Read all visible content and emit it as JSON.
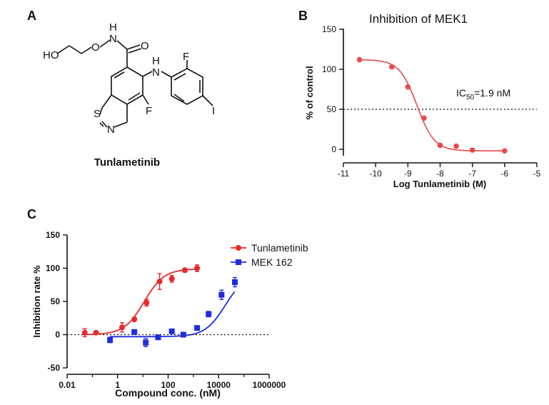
{
  "panels": {
    "a": "A",
    "b": "B",
    "c": "C"
  },
  "structure": {
    "name": "Tunlametinib",
    "atoms": {
      "ho": "HO",
      "o": "O",
      "n": "N",
      "h": "H",
      "carbonyl_o": "O",
      "nh_n": "N",
      "nh_h": "H",
      "f1": "F",
      "f2": "F",
      "i": "I",
      "s": "S",
      "ring_n": "N"
    }
  },
  "colors": {
    "tunlametinib": "#e8292b",
    "mek162": "#1f2be0",
    "panel_b_curve": "#e84a4a",
    "axis": "#111111"
  },
  "chart_data": [
    {
      "type": "scatter",
      "panel": "B",
      "title": "Inhibition of MEK1",
      "xlabel": "Log Tunlametinib (M)",
      "ylabel": "% of control",
      "xlim": [
        -11,
        -5
      ],
      "ylim": [
        -5,
        150
      ],
      "xticks": [
        -11,
        -10,
        -9,
        -8,
        -7,
        -6,
        -5
      ],
      "yticks": [
        0,
        50,
        100,
        150
      ],
      "reference_line_y": 50,
      "annotation": "IC50=1.9 nM",
      "annotation_main": "IC",
      "annotation_sub": "50",
      "annotation_rest": "=1.9 nM",
      "series": [
        {
          "x": [
            -10.5,
            -9.5,
            -9.0,
            -8.5,
            -8.0,
            -7.5,
            -7.0,
            -6.0
          ],
          "y": [
            112,
            103,
            78,
            39,
            5,
            4,
            -1,
            -2
          ]
        }
      ],
      "fit": {
        "top": 112,
        "bottom": -2,
        "log_ic50": -8.72,
        "hill": 1.6
      }
    },
    {
      "type": "line",
      "panel": "C",
      "xlabel": "Compound conc. (nM)",
      "ylabel": "Inhibition rate %",
      "xscale": "log",
      "xlim": [
        0.01,
        1000000
      ],
      "ylim": [
        -50,
        150
      ],
      "xticks": [
        0.01,
        1,
        100,
        10000,
        1000000
      ],
      "xtick_labels": [
        "0.01",
        "1",
        "100",
        "10000",
        "1000000"
      ],
      "yticks": [
        -50,
        0,
        50,
        100,
        150
      ],
      "reference_line_y": 0,
      "legend_position": "top-right",
      "series": [
        {
          "name": "Tunlametinib",
          "marker": "circle",
          "x": [
            0.05,
            0.14,
            1.5,
            4.6,
            14,
            46,
            140,
            460,
            1400
          ],
          "y": [
            3,
            3,
            11,
            23,
            48,
            80,
            84,
            97,
            100
          ],
          "err": [
            6,
            2,
            7,
            3,
            5,
            12,
            5,
            3,
            5
          ],
          "fit": {
            "top": 99,
            "bottom": 0,
            "log_ec50": 1.05,
            "hill": 1.1
          }
        },
        {
          "name": "MEK 162",
          "marker": "square",
          "x": [
            0.5,
            4.6,
            13,
            40,
            140,
            400,
            1400,
            4000,
            13000
          ],
          "y": [
            -8,
            4,
            -12,
            -4,
            5,
            0,
            10,
            31,
            60
          ],
          "err": [
            4,
            3,
            6,
            3,
            3,
            3,
            3,
            4,
            7
          ],
          "extra": {
            "x": [
              44000
            ],
            "y": [
              79
            ],
            "err": [
              7
            ]
          },
          "fit": {
            "top": 90,
            "bottom": -3,
            "log_ec50": 4.25,
            "hill": 1.1
          }
        }
      ]
    }
  ]
}
